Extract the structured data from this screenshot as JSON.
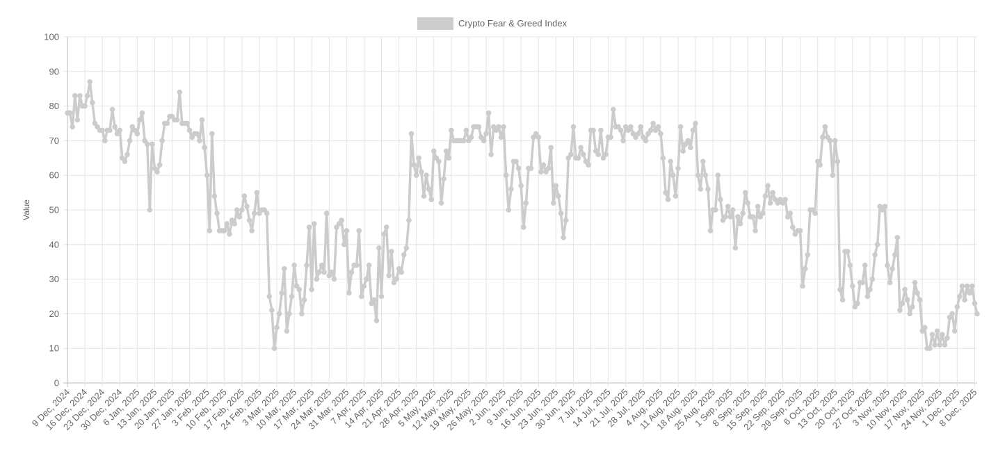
{
  "chart_data": {
    "type": "line",
    "title": "",
    "xlabel": "",
    "ylabel": "Value",
    "ylim": [
      0,
      100
    ],
    "yticks": [
      0,
      10,
      20,
      30,
      40,
      50,
      60,
      70,
      80,
      90,
      100
    ],
    "grid": true,
    "legend_position": "top",
    "x_tick_labels": [
      "9 Dec, 2024",
      "16 Dec, 2024",
      "23 Dec, 2024",
      "30 Dec, 2024",
      "6 Jan, 2025",
      "13 Jan, 2025",
      "20 Jan, 2025",
      "27 Jan, 2025",
      "3 Feb, 2025",
      "10 Feb, 2025",
      "17 Feb, 2025",
      "24 Feb, 2025",
      "3 Mar, 2025",
      "10 Mar, 2025",
      "17 Mar, 2025",
      "24 Mar, 2025",
      "31 Mar, 2025",
      "7 Apr, 2025",
      "14 Apr, 2025",
      "21 Apr, 2025",
      "28 Apr, 2025",
      "5 May, 2025",
      "12 May, 2025",
      "19 May, 2025",
      "26 May, 2025",
      "2 Jun, 2025",
      "9 Jun, 2025",
      "16 Jun, 2025",
      "23 Jun, 2025",
      "30 Jun, 2025",
      "7 Jul, 2025",
      "14 Jul, 2025",
      "21 Jul, 2025",
      "28 Jul, 2025",
      "4 Aug, 2025",
      "11 Aug, 2025",
      "18 Aug, 2025",
      "25 Aug, 2025",
      "1 Sep, 2025",
      "8 Sep, 2025",
      "15 Sep, 2025",
      "22 Sep, 2025",
      "29 Sep, 2025",
      "6 Oct, 2025",
      "13 Oct, 2025",
      "20 Oct, 2025",
      "27 Oct, 2025",
      "3 Nov, 2025",
      "10 Nov, 2025",
      "17 Nov, 2025",
      "24 Nov, 2025",
      "1 Dec, 2025",
      "8 Dec, 2025"
    ],
    "series": [
      {
        "name": "Crypto Fear & Greed Index",
        "color": "#cccccc",
        "values": [
          78,
          78,
          74,
          83,
          76,
          83,
          80,
          80,
          83,
          87,
          81,
          75,
          74,
          73,
          73,
          70,
          73,
          73,
          79,
          74,
          72,
          73,
          65,
          64,
          66,
          70,
          74,
          73,
          72,
          76,
          78,
          70,
          69,
          50,
          69,
          62,
          61,
          63,
          70,
          75,
          75,
          77,
          77,
          76,
          76,
          84,
          75,
          75,
          75,
          73,
          71,
          72,
          72,
          70,
          76,
          68,
          60,
          44,
          72,
          54,
          49,
          44,
          44,
          44,
          46,
          43,
          47,
          46,
          50,
          48,
          50,
          54,
          51,
          47,
          44,
          49,
          55,
          49,
          50,
          50,
          49,
          25,
          21,
          10,
          16,
          20,
          26,
          33,
          15,
          20,
          25,
          34,
          28,
          27,
          20,
          24,
          34,
          45,
          27,
          46,
          30,
          32,
          34,
          32,
          49,
          31,
          32,
          30,
          45,
          46,
          47,
          40,
          44,
          26,
          32,
          34,
          34,
          44,
          25,
          28,
          30,
          34,
          23,
          24,
          18,
          39,
          25,
          43,
          45,
          31,
          38,
          29,
          30,
          33,
          32,
          37,
          39,
          47,
          72,
          63,
          60,
          65,
          61,
          54,
          60,
          56,
          53,
          67,
          65,
          64,
          52,
          59,
          67,
          65,
          73,
          70,
          70,
          70,
          70,
          70,
          73,
          70,
          71,
          74,
          74,
          74,
          71,
          70,
          72,
          78,
          66,
          74,
          73,
          74,
          71,
          74,
          60,
          50,
          56,
          64,
          64,
          62,
          57,
          45,
          52,
          62,
          62,
          71,
          72,
          71,
          61,
          63,
          61,
          62,
          68,
          52,
          57,
          54,
          49,
          42,
          47,
          65,
          66,
          74,
          65,
          65,
          68,
          66,
          64,
          63,
          73,
          73,
          67,
          66,
          73,
          65,
          66,
          71,
          71,
          79,
          74,
          74,
          73,
          70,
          74,
          73,
          74,
          72,
          71,
          72,
          74,
          71,
          70,
          72,
          73,
          75,
          73,
          74,
          72,
          65,
          55,
          53,
          64,
          60,
          54,
          62,
          74,
          67,
          69,
          70,
          68,
          73,
          75,
          60,
          56,
          64,
          60,
          56,
          44,
          50,
          50,
          60,
          53,
          47,
          48,
          51,
          48,
          50,
          39,
          48,
          46,
          49,
          55,
          52,
          48,
          48,
          44,
          51,
          48,
          49,
          54,
          57,
          52,
          55,
          53,
          52,
          53,
          52,
          53,
          48,
          49,
          45,
          43,
          44,
          44,
          28,
          33,
          37,
          50,
          50,
          49,
          64,
          63,
          71,
          74,
          71,
          70,
          60,
          70,
          64,
          27,
          24,
          38,
          38,
          34,
          28,
          22,
          23,
          29,
          29,
          34,
          25,
          27,
          30,
          37,
          40,
          51,
          50,
          51,
          34,
          29,
          33,
          37,
          42,
          21,
          23,
          27,
          24,
          20,
          22,
          29,
          26,
          24,
          15,
          16,
          10,
          10,
          14,
          11,
          15,
          11,
          14,
          11,
          13,
          19,
          20,
          15,
          22,
          25,
          28,
          24,
          28,
          26,
          28,
          23,
          20
        ]
      }
    ]
  }
}
